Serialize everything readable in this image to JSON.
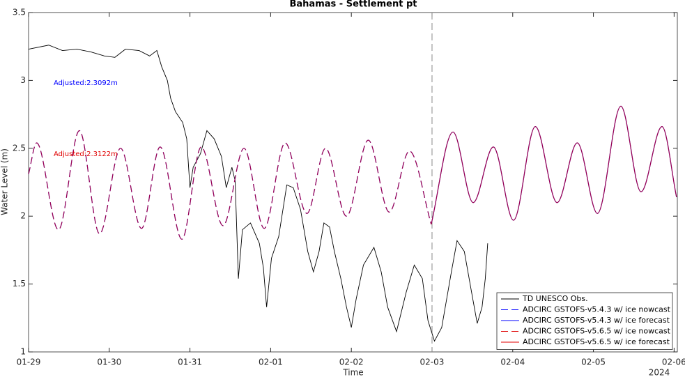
{
  "chart_data": {
    "type": "line",
    "title": "Bahamas - Settlement pt",
    "xlabel": "Time",
    "ylabel": "Water Level (m)",
    "x_corner_label": "2024",
    "xlim": [
      0,
      8.04
    ],
    "ylim": [
      1,
      3.5
    ],
    "xticks": [
      {
        "value": 0,
        "label": "01-29"
      },
      {
        "value": 1,
        "label": "01-30"
      },
      {
        "value": 2,
        "label": "01-31"
      },
      {
        "value": 3,
        "label": "02-01"
      },
      {
        "value": 4,
        "label": "02-02"
      },
      {
        "value": 5,
        "label": "02-03"
      },
      {
        "value": 6,
        "label": "02-04"
      },
      {
        "value": 7,
        "label": "02-05"
      },
      {
        "value": 8,
        "label": "02-06"
      }
    ],
    "yticks": [
      1,
      1.5,
      2,
      2.5,
      3,
      3.5
    ],
    "grid": false,
    "vline": 5,
    "legend": "lower right",
    "annotations": [
      {
        "text": "Adjusted:2.3092m",
        "color": "#0000ff"
      },
      {
        "text": "Adjusted:2.3122m",
        "color": "#e00000"
      }
    ],
    "series": [
      {
        "name": "TD UNESCO Obs.",
        "color": "#000000",
        "style": "solid",
        "smooth": false,
        "x": [
          0,
          0.25,
          0.42,
          0.6,
          0.77,
          0.94,
          1.07,
          1.2,
          1.37,
          1.5,
          1.59,
          1.65,
          1.72,
          1.76,
          1.82,
          1.91,
          1.96,
          2.0,
          2.04,
          2.13,
          2.21,
          2.3,
          2.39,
          2.45,
          2.52,
          2.56,
          2.6,
          2.65,
          2.75,
          2.86,
          2.91,
          2.95,
          3.01,
          3.1,
          3.2,
          3.28,
          3.37,
          3.46,
          3.53,
          3.6,
          3.66,
          3.73,
          3.79,
          3.87,
          3.94,
          4.0,
          4.06,
          4.15,
          4.28,
          4.37,
          4.45,
          4.56,
          4.68,
          4.78,
          4.88,
          4.95,
          5.03,
          5.12,
          5.24,
          5.31,
          5.4,
          5.49,
          5.56,
          5.62,
          5.66,
          5.69
        ],
        "values": [
          3.23,
          3.26,
          3.22,
          3.23,
          3.21,
          3.18,
          3.17,
          3.23,
          3.22,
          3.18,
          3.22,
          3.1,
          3.0,
          2.87,
          2.77,
          2.69,
          2.57,
          2.21,
          2.36,
          2.46,
          2.63,
          2.57,
          2.44,
          2.21,
          2.36,
          2.26,
          1.54,
          1.9,
          1.95,
          1.8,
          1.62,
          1.33,
          1.69,
          1.85,
          2.23,
          2.21,
          2.05,
          1.74,
          1.59,
          1.74,
          1.95,
          1.92,
          1.74,
          1.54,
          1.33,
          1.18,
          1.39,
          1.64,
          1.77,
          1.59,
          1.33,
          1.15,
          1.44,
          1.64,
          1.54,
          1.23,
          1.08,
          1.18,
          1.59,
          1.82,
          1.74,
          1.44,
          1.21,
          1.33,
          1.54,
          1.8
        ]
      },
      {
        "name": "ADCIRC GSTOFS-v5.4.3 w/ ice nowcast",
        "color": "#0000ff",
        "style": "dashed",
        "smooth": true,
        "x": [
          0,
          0.1,
          0.37,
          0.63,
          0.88,
          1.14,
          1.4,
          1.63,
          1.9,
          2.14,
          2.41,
          2.67,
          2.92,
          3.18,
          3.45,
          3.68,
          3.94,
          4.21,
          4.47,
          4.72,
          4.99
        ],
        "values": [
          2.31,
          2.54,
          1.9,
          2.63,
          1.87,
          2.5,
          1.91,
          2.51,
          1.83,
          2.51,
          1.93,
          2.5,
          1.91,
          2.54,
          2.02,
          2.5,
          2.0,
          2.56,
          2.03,
          2.48,
          1.94
        ]
      },
      {
        "name": "ADCIRC GSTOFS-v5.4.3 w/ ice forecast",
        "color": "#0000ff",
        "style": "solid",
        "smooth": true,
        "x": [
          4.99,
          5.26,
          5.51,
          5.76,
          6.01,
          6.28,
          6.55,
          6.8,
          7.05,
          7.34,
          7.59,
          7.85,
          8.03
        ],
        "values": [
          1.94,
          2.62,
          2.1,
          2.51,
          1.97,
          2.66,
          2.1,
          2.54,
          2.02,
          2.81,
          2.18,
          2.66,
          2.14
        ]
      },
      {
        "name": "ADCIRC GSTOFS-v5.6.5 w/ ice nowcast",
        "color": "#e00000",
        "style": "dashed",
        "smooth": true,
        "x": [
          0,
          0.1,
          0.37,
          0.63,
          0.88,
          1.14,
          1.4,
          1.63,
          1.9,
          2.14,
          2.41,
          2.67,
          2.92,
          3.18,
          3.45,
          3.68,
          3.94,
          4.21,
          4.47,
          4.72,
          4.99
        ],
        "values": [
          2.31,
          2.54,
          1.9,
          2.63,
          1.87,
          2.5,
          1.91,
          2.51,
          1.83,
          2.51,
          1.93,
          2.5,
          1.91,
          2.54,
          2.02,
          2.5,
          2.0,
          2.56,
          2.03,
          2.48,
          1.94
        ]
      },
      {
        "name": "ADCIRC GSTOFS-v5.6.5 w/ ice forecast",
        "color": "#e00000",
        "style": "solid",
        "smooth": true,
        "x": [
          4.99,
          5.26,
          5.51,
          5.76,
          6.01,
          6.28,
          6.55,
          6.8,
          7.05,
          7.34,
          7.59,
          7.85,
          8.03
        ],
        "values": [
          1.94,
          2.62,
          2.1,
          2.51,
          1.97,
          2.66,
          2.1,
          2.54,
          2.02,
          2.81,
          2.18,
          2.66,
          2.14
        ]
      }
    ]
  }
}
